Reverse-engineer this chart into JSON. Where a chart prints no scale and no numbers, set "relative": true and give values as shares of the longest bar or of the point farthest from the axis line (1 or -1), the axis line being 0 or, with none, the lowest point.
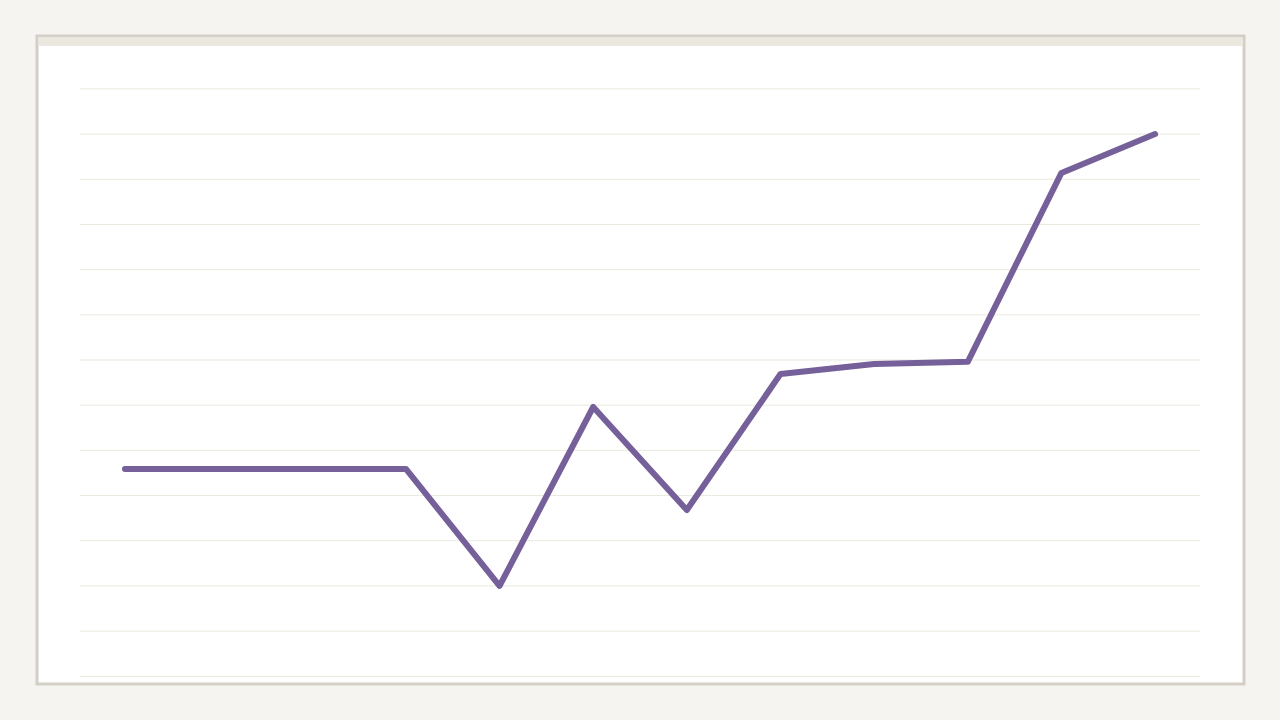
{
  "chart_data": {
    "type": "line",
    "relative": true,
    "grid": "y",
    "line_style": "solid",
    "marker": "none",
    "categories": [
      null,
      null,
      null,
      null,
      null,
      null,
      null,
      null,
      null,
      null,
      null,
      null
    ],
    "series": [
      {
        "color": "#76609a",
        "values": [
          0.259,
          0.259,
          0.259,
          0.259,
          0,
          0.396,
          0.168,
          0.469,
          0.491,
          0.496,
          0.914,
          1
        ]
      }
    ]
  }
}
